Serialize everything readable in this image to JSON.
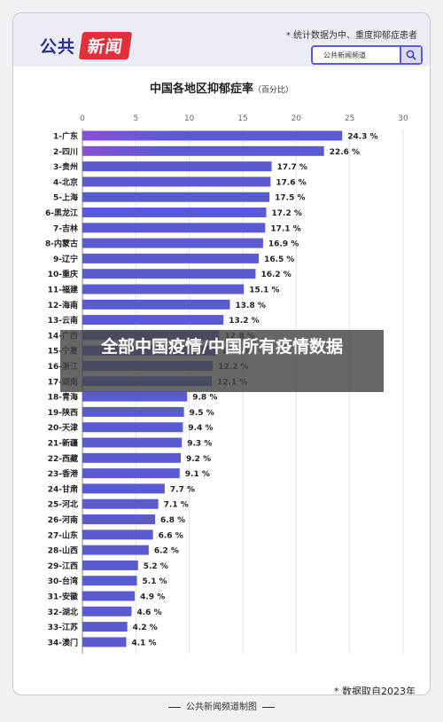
{
  "header": {
    "logo_left": "公共",
    "logo_right": "新闻",
    "note": "* 统计数据为中、重度抑郁症患者",
    "search_text": "公共新闻频道"
  },
  "chart_data": {
    "type": "bar",
    "orientation": "horizontal",
    "title": "中国各地区抑郁症率",
    "title_unit": "（百分比）",
    "xlim": [
      0,
      30
    ],
    "x_ticks": [
      "0",
      "5",
      "10",
      "15",
      "20",
      "25",
      "30"
    ],
    "grid": true,
    "categories": [
      "1-广东",
      "2-四川",
      "3-贵州",
      "4-北京",
      "5-上海",
      "6-黑龙江",
      "7-吉林",
      "8-内蒙古",
      "9-辽宁",
      "10-重庆",
      "11-福建",
      "12-海南",
      "13-云南",
      "14-广西",
      "15-宁夏",
      "16-浙江",
      "17-湖南",
      "18-青海",
      "19-陕西",
      "20-天津",
      "21-新疆",
      "22-西藏",
      "23-香港",
      "24-甘肃",
      "25-河北",
      "26-河南",
      "27-山东",
      "28-山西",
      "29-江西",
      "30-台湾",
      "31-安徽",
      "32-湖北",
      "33-江苏",
      "34-澳门"
    ],
    "values": [
      24.3,
      22.6,
      17.7,
      17.6,
      17.5,
      17.2,
      17.1,
      16.9,
      16.5,
      16.2,
      15.1,
      13.8,
      13.2,
      12.8,
      12.5,
      12.2,
      12.1,
      9.8,
      9.5,
      9.4,
      9.3,
      9.2,
      9.1,
      7.7,
      7.1,
      6.8,
      6.6,
      6.2,
      5.2,
      5.1,
      4.9,
      4.6,
      4.2,
      4.1
    ],
    "value_labels": [
      "24.3 %",
      "22.6 %",
      "17.7 %",
      "17.6 %",
      "17.5 %",
      "17.2 %",
      "17.1 %",
      "16.9 %",
      "16.5 %",
      "16.2 %",
      "15.1 %",
      "13.8 %",
      "13.2 %",
      "12.8 %",
      "12.5 %",
      "12.2 %",
      "12.1 %",
      "9.8 %",
      "9.5 %",
      "9.4 %",
      "9.3 %",
      "9.2 %",
      "9.1 %",
      "7.7 %",
      "7.1 %",
      "6.8 %",
      "6.6 %",
      "6.2 %",
      "5.2 %",
      "5.1 %",
      "4.9 %",
      "4.6 %",
      "4.2 %",
      "4.1 %"
    ],
    "bar_color": "#5a5ad3",
    "bar_highlight_color": "#8a4fd8"
  },
  "overlay_text": "全部中国疫情/中国所有疫情数据",
  "source_note": "* 数据取自2023年",
  "footer": "公共新闻频道制图"
}
